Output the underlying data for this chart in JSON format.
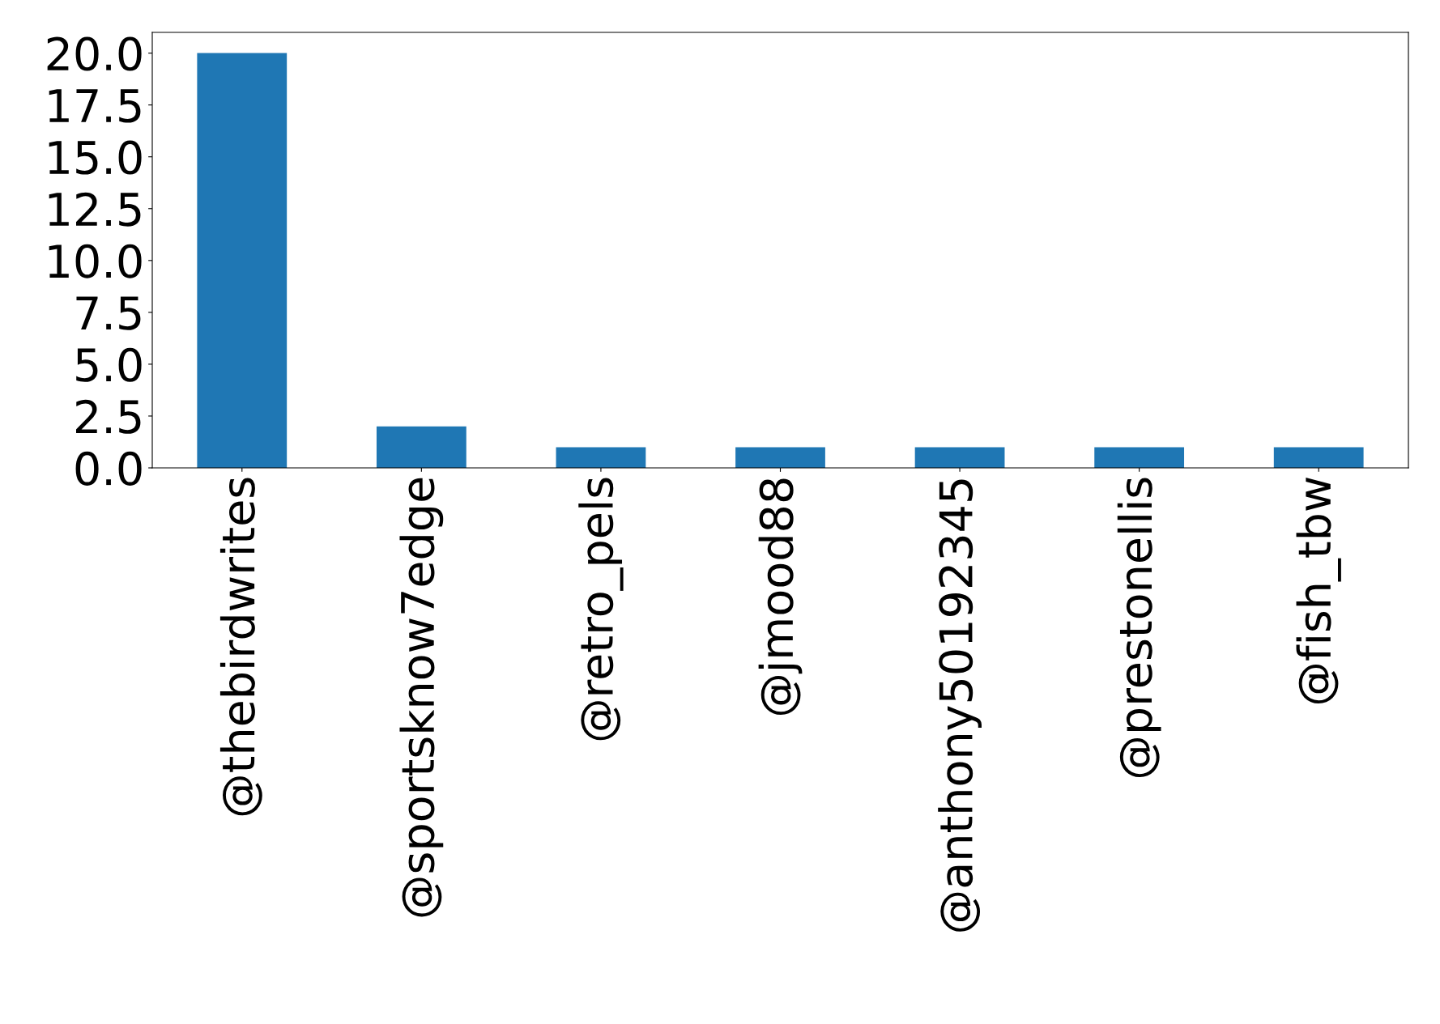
{
  "chart_data": {
    "type": "bar",
    "categories": [
      "@thebirdwrites",
      "@sportsknow7edge",
      "@retro_pels",
      "@jmood88",
      "@anthony50192345",
      "@prestonellis",
      "@fish_tbw"
    ],
    "values": [
      20,
      2,
      1,
      1,
      1,
      1,
      1
    ],
    "color": "#1f77b4",
    "ylim": [
      0,
      21
    ],
    "yticks": [
      {
        "value": 0,
        "label": "0.0"
      },
      {
        "value": 2.5,
        "label": "2.5"
      },
      {
        "value": 5,
        "label": "5.0"
      },
      {
        "value": 7.5,
        "label": "7.5"
      },
      {
        "value": 10,
        "label": "10.0"
      },
      {
        "value": 12.5,
        "label": "12.5"
      },
      {
        "value": 15,
        "label": "15.0"
      },
      {
        "value": 17.5,
        "label": "17.5"
      },
      {
        "value": 20,
        "label": "20.0"
      }
    ],
    "grid": false,
    "legend": false
  }
}
